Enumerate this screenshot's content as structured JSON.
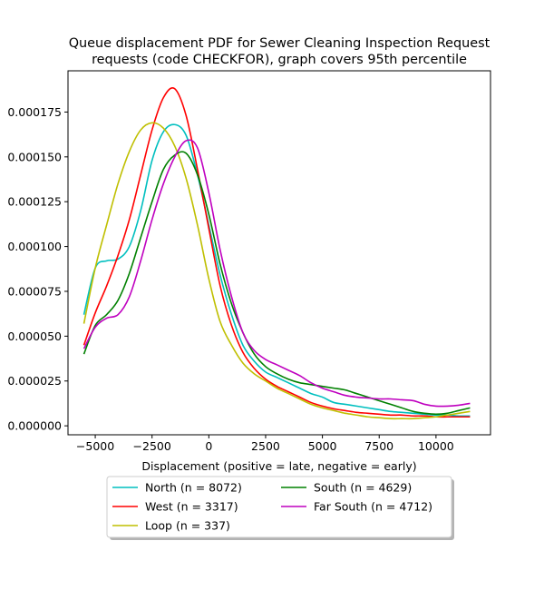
{
  "chart_data": {
    "type": "line",
    "title_lines": [
      "Queue displacement PDF for Sewer Cleaning Inspection Request",
      "requests (code CHECKFOR), graph covers 95th percentile"
    ],
    "xlabel": "Displacement (positive = late, negative = early)",
    "ylabel": "",
    "xlim": [
      -6200,
      12400
    ],
    "ylim": [
      -5e-06,
      0.000198
    ],
    "x_ticks": [
      -5000,
      -2500,
      0,
      2500,
      5000,
      7500,
      10000
    ],
    "x_tick_labels": [
      "−5000",
      "−2500",
      "0",
      "2500",
      "5000",
      "7500",
      "10000"
    ],
    "y_ticks": [
      0,
      2.5e-05,
      5e-05,
      7.5e-05,
      0.0001,
      0.000125,
      0.00015,
      0.000175
    ],
    "y_tick_labels": [
      "0.000000",
      "0.000025",
      "0.000050",
      "0.000075",
      "0.000100",
      "0.000125",
      "0.000150",
      "0.000175"
    ],
    "grid": false,
    "legend_position": "below plot, centered",
    "legend_columns": 2,
    "x": [
      -5500,
      -5000,
      -4500,
      -4000,
      -3500,
      -3000,
      -2500,
      -2000,
      -1500,
      -1000,
      -500,
      0,
      500,
      1000,
      1500,
      2000,
      2500,
      3000,
      3500,
      4000,
      4500,
      5000,
      5500,
      6000,
      6500,
      7000,
      7500,
      8000,
      8500,
      9000,
      9500,
      10000,
      10500,
      11000,
      11500
    ],
    "series": [
      {
        "name": "North (n = 8072)",
        "color": "#00bfbf",
        "values": [
          6.2e-05,
          8.8e-05,
          9.2e-05,
          9.3e-05,
          0.0001,
          0.00012,
          0.000148,
          0.000164,
          0.000168,
          0.000162,
          0.00014,
          0.000112,
          8.4e-05,
          6.2e-05,
          4.5e-05,
          3.6e-05,
          3e-05,
          2.7e-05,
          2.4e-05,
          2.1e-05,
          1.8e-05,
          1.6e-05,
          1.3e-05,
          1.2e-05,
          1.1e-05,
          1e-05,
          9e-06,
          8e-06,
          7.5e-06,
          7e-06,
          6.5e-06,
          6e-06,
          6e-06,
          5.5e-06,
          5.5e-06
        ]
      },
      {
        "name": "West (n = 3317)",
        "color": "#ff0000",
        "values": [
          4.5e-05,
          6.3e-05,
          7.8e-05,
          9.5e-05,
          0.000115,
          0.00014,
          0.000165,
          0.000183,
          0.000188,
          0.000173,
          0.000143,
          0.00011,
          7.8e-05,
          5.6e-05,
          4.1e-05,
          3.2e-05,
          2.6e-05,
          2.2e-05,
          1.9e-05,
          1.6e-05,
          1.3e-05,
          1.1e-05,
          9.5e-06,
          8.5e-06,
          7.5e-06,
          7e-06,
          6.5e-06,
          6e-06,
          6e-06,
          5.5e-06,
          5.5e-06,
          5e-06,
          5e-06,
          5e-06,
          5e-06
        ]
      },
      {
        "name": "Loop (n = 337)",
        "color": "#bfbf00",
        "values": [
          5.7e-05,
          8.8e-05,
          0.000112,
          0.000135,
          0.000153,
          0.000165,
          0.000169,
          0.000166,
          0.000156,
          0.000138,
          0.000112,
          8.2e-05,
          5.8e-05,
          4.5e-05,
          3.5e-05,
          2.9e-05,
          2.5e-05,
          2.1e-05,
          1.8e-05,
          1.5e-05,
          1.2e-05,
          1e-05,
          8.5e-06,
          7e-06,
          6e-06,
          5e-06,
          4.5e-06,
          4e-06,
          4e-06,
          4e-06,
          4.5e-06,
          5e-06,
          6e-06,
          7e-06,
          8e-06
        ]
      },
      {
        "name": "South (n = 4629)",
        "color": "#008000",
        "values": [
          4e-05,
          5.6e-05,
          6.2e-05,
          7e-05,
          8.5e-05,
          0.000105,
          0.000125,
          0.000143,
          0.000151,
          0.000152,
          0.00014,
          0.000118,
          9e-05,
          6.8e-05,
          5.2e-05,
          4e-05,
          3.3e-05,
          2.9e-05,
          2.6e-05,
          2.4e-05,
          2.3e-05,
          2.2e-05,
          2.1e-05,
          2e-05,
          1.8e-05,
          1.6e-05,
          1.4e-05,
          1.2e-05,
          1e-05,
          8e-06,
          7e-06,
          6.5e-06,
          7e-06,
          8.5e-06,
          1e-05
        ]
      },
      {
        "name": "Far South (n = 4712)",
        "color": "#bf00bf",
        "values": [
          4.3e-05,
          5.5e-05,
          6e-05,
          6.2e-05,
          7.2e-05,
          9.2e-05,
          0.000115,
          0.000135,
          0.00015,
          0.000159,
          0.000155,
          0.00013,
          9.8e-05,
          7.2e-05,
          5.2e-05,
          4.2e-05,
          3.7e-05,
          3.4e-05,
          3.1e-05,
          2.8e-05,
          2.4e-05,
          2.1e-05,
          1.9e-05,
          1.7e-05,
          1.6e-05,
          1.55e-05,
          1.5e-05,
          1.5e-05,
          1.45e-05,
          1.4e-05,
          1.2e-05,
          1.1e-05,
          1.1e-05,
          1.15e-05,
          1.25e-05
        ]
      }
    ]
  }
}
